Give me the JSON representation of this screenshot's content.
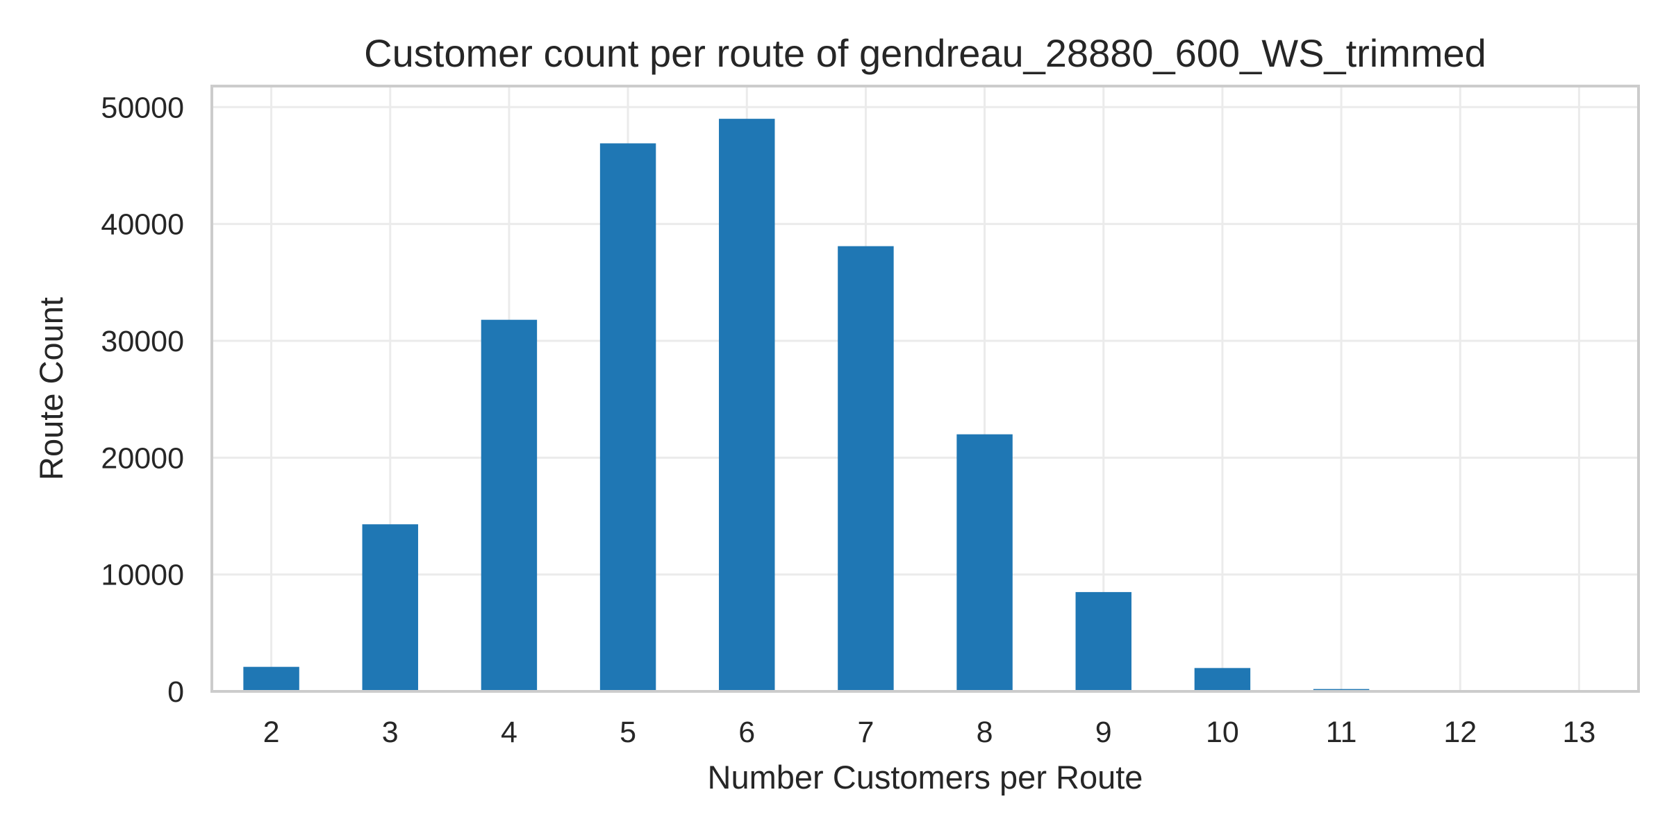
{
  "chart_data": {
    "type": "bar",
    "title": "Customer count per route of gendreau_28880_600_WS_trimmed",
    "xlabel": "Number Customers per Route",
    "ylabel": "Route Count",
    "categories": [
      "2",
      "3",
      "4",
      "5",
      "6",
      "7",
      "8",
      "9",
      "10",
      "11",
      "12",
      "13"
    ],
    "values": [
      2100,
      14300,
      31800,
      46900,
      49000,
      38100,
      22000,
      8500,
      2000,
      200,
      20,
      5
    ],
    "ylim": [
      0,
      51800
    ],
    "yticks": [
      0,
      10000,
      20000,
      30000,
      40000,
      50000
    ],
    "grid": true,
    "legend": "none",
    "bar_color": "#1f77b4"
  }
}
